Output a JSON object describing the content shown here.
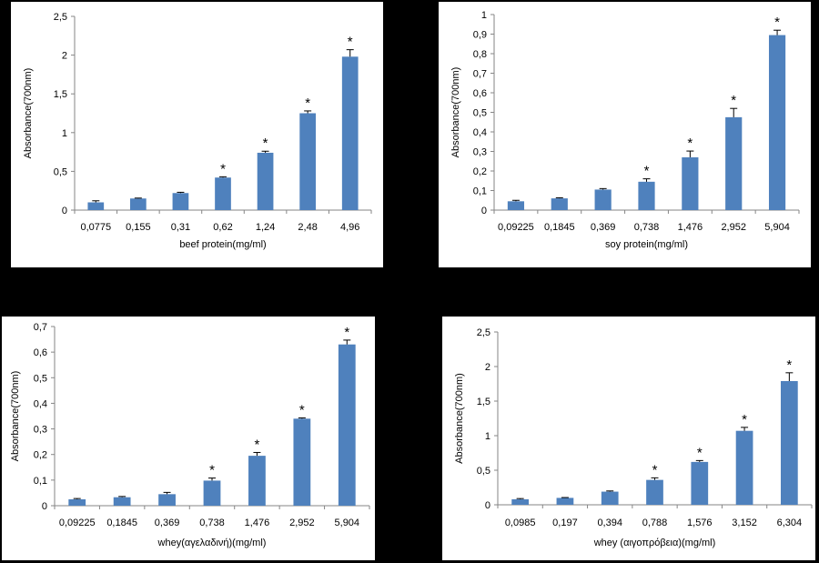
{
  "chart_data": [
    {
      "type": "bar",
      "categories": [
        "0,0775",
        "0,155",
        "0,31",
        "0,62",
        "1,24",
        "2,48",
        "4,96"
      ],
      "values": [
        0.1,
        0.15,
        0.22,
        0.42,
        0.74,
        1.25,
        1.98
      ],
      "errors": [
        0.02,
        0.005,
        0.01,
        0.01,
        0.02,
        0.03,
        0.09
      ],
      "significant": [
        false,
        false,
        false,
        true,
        true,
        true,
        true
      ],
      "xlabel": "beef protein(mg/ml)",
      "ylabel": "Absorbance(700nm)",
      "ylim": [
        0,
        2.5
      ],
      "yticks": [
        "0",
        "0,5",
        "1",
        "1,5",
        "2",
        "2,5"
      ],
      "star_symbol": "*",
      "bar_color": "#4f81bd"
    },
    {
      "type": "bar",
      "categories": [
        "0,09225",
        "0,1845",
        "0,369",
        "0,738",
        "1,476",
        "2,952",
        "5,904"
      ],
      "values": [
        0.045,
        0.06,
        0.105,
        0.145,
        0.27,
        0.475,
        0.895
      ],
      "errors": [
        0.005,
        0.003,
        0.005,
        0.015,
        0.032,
        0.045,
        0.025
      ],
      "significant": [
        false,
        false,
        false,
        true,
        true,
        true,
        true
      ],
      "xlabel": "soy protein(mg/ml)",
      "ylabel": "Absorbance(700nm)",
      "ylim": [
        0,
        1
      ],
      "yticks": [
        "0",
        "0,1",
        "0,2",
        "0,3",
        "0,4",
        "0,5",
        "0,6",
        "0,7",
        "0,8",
        "0,9",
        "1"
      ],
      "star_symbol": "*",
      "bar_color": "#4f81bd"
    },
    {
      "type": "bar",
      "categories": [
        "0,09225",
        "0,1845",
        "0,369",
        "0,738",
        "1,476",
        "2,952",
        "5,904"
      ],
      "values": [
        0.025,
        0.033,
        0.045,
        0.098,
        0.195,
        0.34,
        0.63
      ],
      "errors": [
        0.003,
        0.003,
        0.007,
        0.01,
        0.013,
        0.003,
        0.017
      ],
      "significant": [
        false,
        false,
        false,
        true,
        true,
        true,
        true
      ],
      "xlabel": "whey(αγελαδινή)(mg/ml)",
      "ylabel": "Absorbance(700nm)",
      "ylim": [
        0,
        0.7
      ],
      "yticks": [
        "0",
        "0,1",
        "0,2",
        "0,3",
        "0,4",
        "0,5",
        "0,6",
        "0,7"
      ],
      "star_symbol": "*",
      "bar_color": "#4f81bd"
    },
    {
      "type": "bar",
      "categories": [
        "0,0985",
        "0,197",
        "0,394",
        "0,788",
        "1,576",
        "3,152",
        "6,304"
      ],
      "values": [
        0.08,
        0.1,
        0.19,
        0.36,
        0.62,
        1.07,
        1.79
      ],
      "errors": [
        0.01,
        0.005,
        0.01,
        0.03,
        0.02,
        0.05,
        0.12
      ],
      "significant": [
        false,
        false,
        false,
        true,
        true,
        true,
        true
      ],
      "xlabel": "whey (αιγοπρόβεια)(mg/ml)",
      "ylabel": "Absorbance(700nm)",
      "ylim": [
        0,
        2.5
      ],
      "yticks": [
        "0",
        "0,5",
        "1",
        "1,5",
        "2",
        "2,5"
      ],
      "star_symbol": "*",
      "bar_color": "#4f81bd"
    }
  ]
}
